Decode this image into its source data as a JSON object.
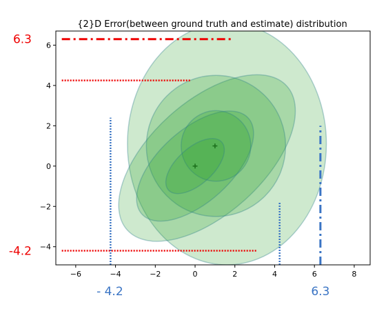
{
  "chart_data": {
    "type": "scatter",
    "title": "{2}D Error(between ground truth and estimate) distribution",
    "xlabel": "",
    "ylabel": "",
    "xlim": [
      -7,
      8.8
    ],
    "ylim": [
      -4.9,
      6.7
    ],
    "xticks": [
      -6,
      -4,
      -2,
      0,
      2,
      4,
      6,
      8
    ],
    "yticks": [
      -4,
      -2,
      0,
      2,
      4,
      6
    ],
    "xtick_labels": [
      "−6",
      "−4",
      "−2",
      "0",
      "2",
      "4",
      "6",
      "8"
    ],
    "ytick_labels": [
      "−4",
      "−2",
      "0",
      "2",
      "4",
      "6"
    ],
    "grid": false,
    "colors": {
      "ellipse_fill": "#2ca02c",
      "ellipse_edge": "#2a7f8a",
      "center_marker": "#1a6e1a",
      "annotation_red": "#ee0000",
      "annotation_blue": "#3a74c4"
    },
    "centers": [
      {
        "x": 0.0,
        "y": 0.0
      },
      {
        "x": 1.0,
        "y": 1.0
      }
    ],
    "ellipses": [
      {
        "cx": 1.6,
        "cy": 1.1,
        "rx": 5.0,
        "ry": 6.0,
        "angle_deg": 0,
        "opacity": 0.23
      },
      {
        "cx": 0.6,
        "cy": 0.4,
        "rx": 5.4,
        "ry": 2.8,
        "angle_deg": -42,
        "opacity": 0.23
      },
      {
        "cx": 1.05,
        "cy": 1.0,
        "rx": 3.5,
        "ry": 3.5,
        "angle_deg": 0,
        "opacity": 0.23
      },
      {
        "cx": 0.0,
        "cy": 0.0,
        "rx": 3.6,
        "ry": 1.8,
        "angle_deg": -42,
        "opacity": 0.23
      },
      {
        "cx": 1.05,
        "cy": 1.0,
        "rx": 1.75,
        "ry": 1.75,
        "angle_deg": 0,
        "opacity": 0.23
      },
      {
        "cx": 0.0,
        "cy": 0.0,
        "rx": 1.8,
        "ry": 0.9,
        "angle_deg": -42,
        "opacity": 0.23
      }
    ],
    "reference_lines": [
      {
        "orientation": "horizontal",
        "value": 6.3,
        "from": -6.7,
        "to": 1.8,
        "style": "dashdot",
        "color": "red"
      },
      {
        "orientation": "horizontal",
        "value": 4.25,
        "from": -6.7,
        "to": -0.2,
        "style": "dotted",
        "color": "red"
      },
      {
        "orientation": "horizontal",
        "value": -4.2,
        "from": -6.7,
        "to": 3.1,
        "style": "dotted",
        "color": "red"
      },
      {
        "orientation": "vertical",
        "value": -4.25,
        "from": -4.9,
        "to": 2.4,
        "style": "dotted",
        "color": "blue"
      },
      {
        "orientation": "vertical",
        "value": 4.25,
        "from": -4.9,
        "to": -1.75,
        "style": "dotted",
        "color": "blue"
      },
      {
        "orientation": "vertical",
        "value": 6.3,
        "from": -4.9,
        "to": 2.0,
        "style": "dashdot",
        "color": "blue"
      }
    ],
    "annotations": [
      {
        "text": "6.3",
        "color": "red",
        "anchor": "left-of-y-axis",
        "value": 6.3
      },
      {
        "text": "-4.2",
        "color": "red",
        "anchor": "left-of-y-axis",
        "value": -4.2
      },
      {
        "text": "- 4.2",
        "color": "blue",
        "anchor": "below-x-axis",
        "value": -4.25
      },
      {
        "text": "6.3",
        "color": "blue",
        "anchor": "below-x-axis",
        "value": 6.3
      }
    ]
  }
}
